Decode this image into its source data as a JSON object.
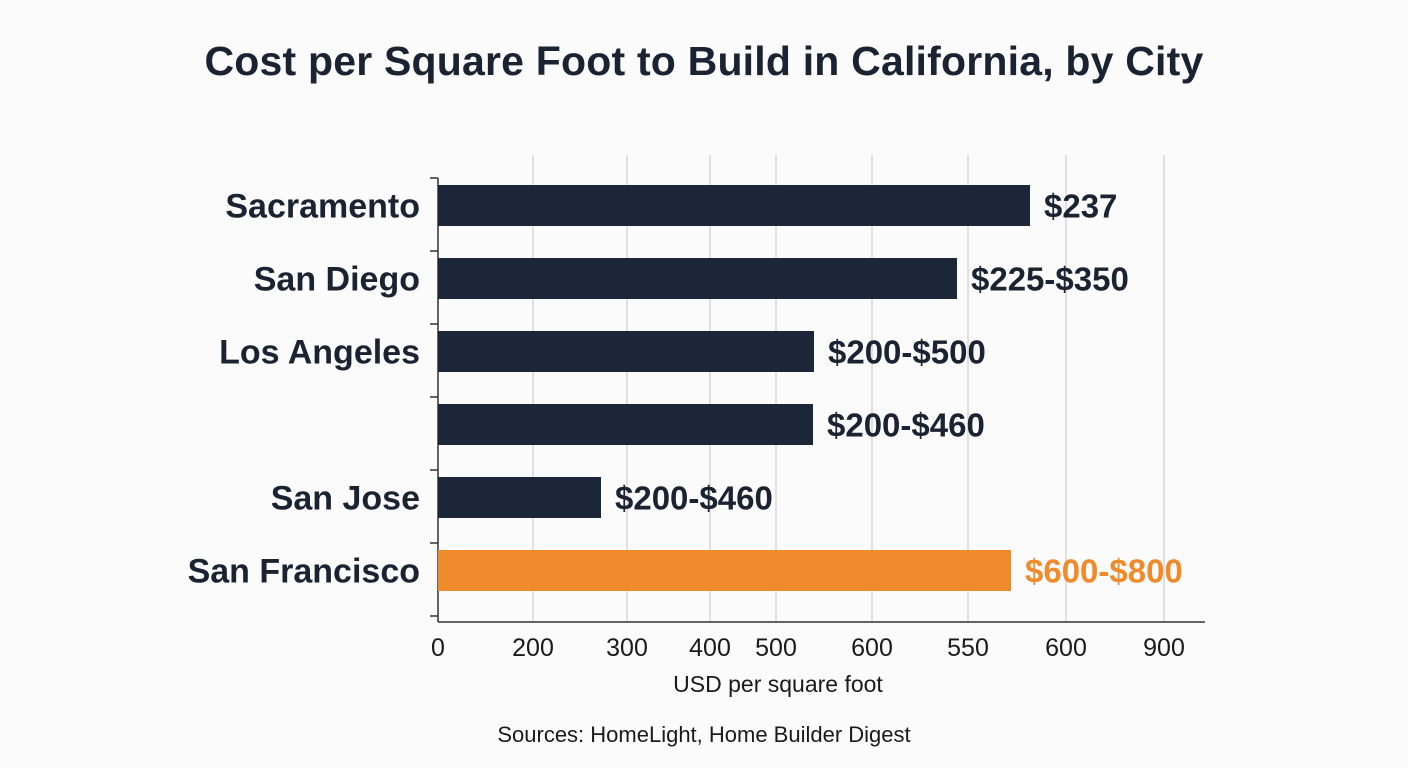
{
  "chart_data": {
    "type": "bar",
    "orientation": "horizontal",
    "title": "Cost per Square Foot to Build in California, by City",
    "xlabel": "USD per square foot",
    "ylabel": "",
    "x_tick_labels": [
      "0",
      "200",
      "300",
      "400",
      "500",
      "600",
      "550",
      "600",
      "900"
    ],
    "grid": "vertical",
    "categories": [
      "Sacramento",
      "San Diego",
      "Los Angeles",
      "",
      "San Jose",
      "San Francisco"
    ],
    "values": [
      237,
      225,
      200,
      200,
      200,
      600
    ],
    "value_labels": [
      "$237",
      "$225-$350",
      "$200-$500",
      "$200-$460",
      "$200-$460",
      "$600-$800"
    ],
    "highlight_category": "San Francisco",
    "colors": {
      "bar": "#1b2639",
      "highlight": "#ef8b2c",
      "text": "#1a2332",
      "grid": "#cfcfcf",
      "axis": "#333333"
    }
  },
  "source_note": "Sources: HomeLight, Home Builder Digest"
}
